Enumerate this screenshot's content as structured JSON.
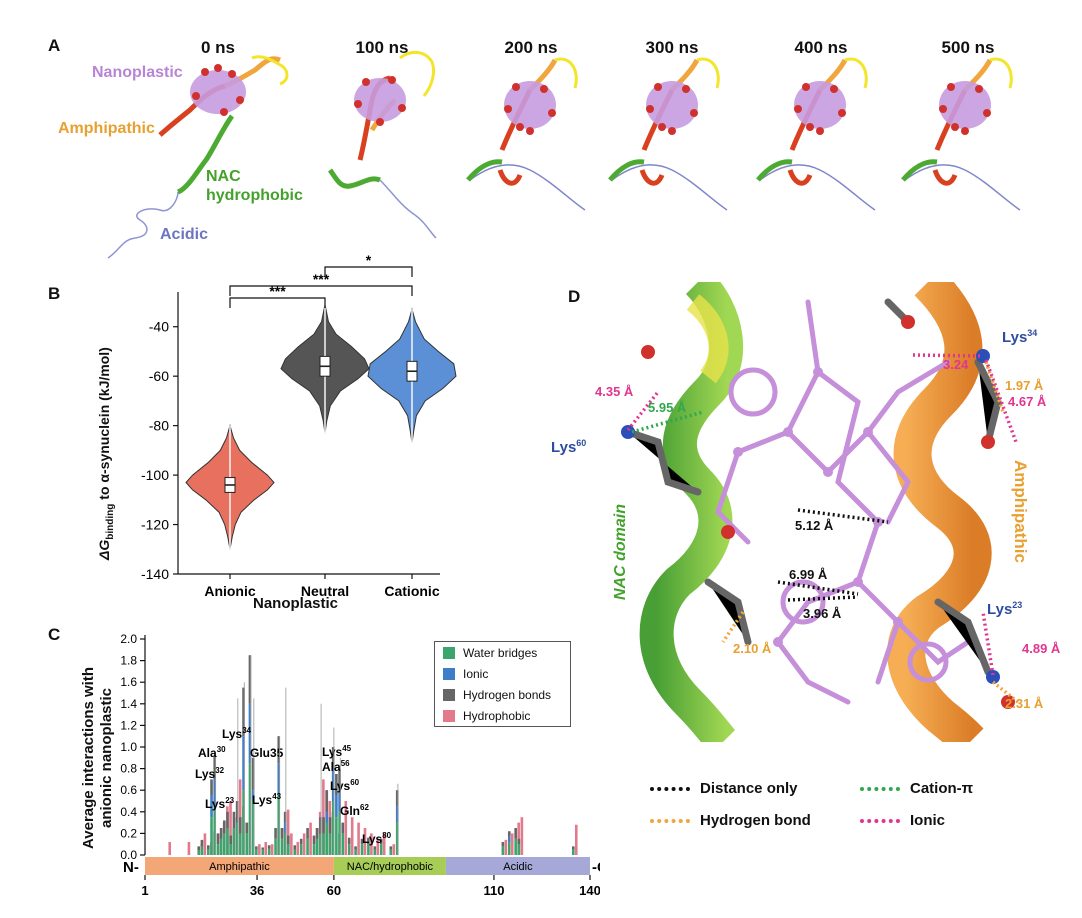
{
  "panel_a": {
    "label": "A",
    "timepoints": [
      "0 ns",
      "100 ns",
      "200 ns",
      "300 ns",
      "400 ns",
      "500 ns"
    ],
    "domains": {
      "nanoplastic": "Nanoplastic",
      "amphipathic": "Amphipathic",
      "nac_line1": "NAC",
      "nac_line2": "hydrophobic",
      "acidic": "Acidic"
    },
    "colors": {
      "nanoplastic": "#c79be0",
      "amphipathic": "#f0a63c",
      "nac": "#4caa32",
      "acidic": "#7f86c9",
      "helix_red": "#d9401f",
      "helix_yellow": "#f2e52a"
    }
  },
  "panel_b": {
    "label": "B",
    "ylabel_main": "ΔG",
    "ylabel_sub": "binding",
    "ylabel_rest": " to α-synuclein (kJ/mol)",
    "xlabel": "Nanoplastic",
    "sig": [
      "***",
      "***",
      "*"
    ]
  },
  "panel_c": {
    "label": "C",
    "ylabel_line1": "Average interactions with",
    "ylabel_line2": "anionic nanoplastic",
    "legend": [
      "Water bridges",
      "Ionic",
      "Hydrogen bonds",
      "Hydrophobic"
    ],
    "legend_colors": [
      "#3aa56d",
      "#3c7ec8",
      "#666666",
      "#e27a8c"
    ],
    "domain_bar": {
      "amphipathic": "Amphipathic",
      "nac": "NAC/hydrophobic",
      "acidic": "Acidic",
      "n": "N-",
      "c": "-C"
    },
    "residue_labels": [
      {
        "name": "Lys",
        "sup": "23"
      },
      {
        "name": "Lys",
        "sup": "32"
      },
      {
        "name": "Ala",
        "sup": "30"
      },
      {
        "name": "Lys",
        "sup": "34"
      },
      {
        "name": "Glu35",
        "sup": ""
      },
      {
        "name": "Lys",
        "sup": "43"
      },
      {
        "name": "Lys",
        "sup": "45"
      },
      {
        "name": "Ala",
        "sup": "56"
      },
      {
        "name": "Lys",
        "sup": "60"
      },
      {
        "name": "Gln",
        "sup": "62"
      },
      {
        "name": "Lys",
        "sup": "80"
      }
    ]
  },
  "panel_d": {
    "label": "D",
    "residues": {
      "lys34": {
        "name": "Lys",
        "sup": "34"
      },
      "lys60": {
        "name": "Lys",
        "sup": "60"
      },
      "lys23": {
        "name": "Lys",
        "sup": "23"
      }
    },
    "domains": {
      "nac": "NAC domain",
      "amph": "Amphipathic"
    },
    "distances": [
      "3.24",
      "1.97 Å",
      "4.67 Å",
      "4.35 Å",
      "5.95 Å",
      "5.12 Å",
      "6.99 Å",
      "3.96 Å",
      "2.10 Å",
      "4.89 Å",
      "2.31 Å"
    ],
    "legend": {
      "distance_only": "Distance only",
      "cation_pi": "Cation-π",
      "hbond": "Hydrogen bond",
      "ionic": "Ionic"
    },
    "legend_colors": {
      "distance_only": "#111111",
      "cation_pi": "#2fa84f",
      "hbond": "#f0a63c",
      "ionic": "#e0368f"
    }
  },
  "chart_data": [
    {
      "type": "violin",
      "categories": [
        "Anionic",
        "Neutral",
        "Cationic"
      ],
      "ylabel": "ΔGbinding to α-synuclein (kJ/mol)",
      "xlabel": "Nanoplastic",
      "ylim": [
        -140,
        -30
      ],
      "yticks": [
        -140,
        -120,
        -100,
        -80,
        -60,
        -40
      ],
      "series": [
        {
          "name": "Anionic",
          "color": "#e8705f",
          "median": -104,
          "q1": -107,
          "q3": -101,
          "min": -130,
          "max": -80,
          "profile": [
            [
              -130,
              0.0
            ],
            [
              -125,
              0.05
            ],
            [
              -120,
              0.12
            ],
            [
              -115,
              0.25
            ],
            [
              -110,
              0.55
            ],
            [
              -106,
              0.85
            ],
            [
              -103,
              1.0
            ],
            [
              -100,
              0.85
            ],
            [
              -95,
              0.5
            ],
            [
              -90,
              0.22
            ],
            [
              -85,
              0.08
            ],
            [
              -80,
              0.0
            ]
          ]
        },
        {
          "name": "Neutral",
          "color": "#555555",
          "median": -56,
          "q1": -60,
          "q3": -52,
          "min": -83,
          "max": -31,
          "profile": [
            [
              -83,
              0.0
            ],
            [
              -78,
              0.04
            ],
            [
              -72,
              0.12
            ],
            [
              -66,
              0.35
            ],
            [
              -61,
              0.75
            ],
            [
              -57,
              1.0
            ],
            [
              -53,
              0.9
            ],
            [
              -48,
              0.6
            ],
            [
              -43,
              0.25
            ],
            [
              -38,
              0.08
            ],
            [
              -31,
              0.0
            ]
          ]
        },
        {
          "name": "Cationic",
          "color": "#5b8fd6",
          "median": -58,
          "q1": -62,
          "q3": -54,
          "min": -87,
          "max": -33,
          "profile": [
            [
              -87,
              0.0
            ],
            [
              -82,
              0.04
            ],
            [
              -76,
              0.1
            ],
            [
              -70,
              0.3
            ],
            [
              -65,
              0.7
            ],
            [
              -60,
              1.0
            ],
            [
              -55,
              0.95
            ],
            [
              -50,
              0.6
            ],
            [
              -45,
              0.28
            ],
            [
              -38,
              0.08
            ],
            [
              -33,
              0.0
            ]
          ]
        }
      ],
      "significance": [
        {
          "pair": [
            "Anionic",
            "Neutral"
          ],
          "label": "***"
        },
        {
          "pair": [
            "Anionic",
            "Cationic"
          ],
          "label": "***"
        },
        {
          "pair": [
            "Neutral",
            "Cationic"
          ],
          "label": "*"
        }
      ]
    },
    {
      "type": "bar",
      "xlabel": "",
      "ylabel": "Average interactions with anionic nanoplastic",
      "ylim": [
        0,
        2.0
      ],
      "yticks": [
        0.0,
        0.2,
        0.4,
        0.6,
        0.8,
        1.0,
        1.2,
        1.4,
        1.6,
        1.8,
        2.0
      ],
      "xlim": [
        1,
        140
      ],
      "xticks": [
        1,
        36,
        60,
        110,
        140
      ],
      "series_names": [
        "Water bridges",
        "Ionic",
        "Hydrogen bonds",
        "Hydrophobic"
      ],
      "bars": [
        {
          "x": 8,
          "v": [
            0,
            0,
            0,
            0.12
          ]
        },
        {
          "x": 14,
          "v": [
            0,
            0,
            0,
            0.12
          ]
        },
        {
          "x": 18,
          "v": [
            0.04,
            0,
            0.04,
            0.1
          ]
        },
        {
          "x": 19,
          "v": [
            0.08,
            0,
            0.06,
            0.2
          ]
        },
        {
          "x": 21,
          "v": [
            0.05,
            0,
            0.04,
            0.12
          ]
        },
        {
          "x": 22,
          "v": [
            0.35,
            0.2,
            0.15,
            0.22
          ]
        },
        {
          "x": 23,
          "v": [
            0.44,
            0.26,
            0.22,
            0
          ]
        },
        {
          "x": 24,
          "v": [
            0.1,
            0,
            0.1,
            0.2
          ]
        },
        {
          "x": 25,
          "v": [
            0.15,
            0,
            0.1,
            0.3
          ]
        },
        {
          "x": 26,
          "v": [
            0.2,
            0,
            0.12,
            0.45
          ]
        },
        {
          "x": 27,
          "v": [
            0.25,
            0,
            0.15,
            0.5
          ]
        },
        {
          "x": 28,
          "v": [
            0.1,
            0,
            0.08,
            0.25
          ]
        },
        {
          "x": 29,
          "v": [
            0.25,
            0,
            0.15,
            0.35
          ]
        },
        {
          "x": 30,
          "v": [
            0.3,
            0,
            0.2,
            0.7
          ]
        },
        {
          "x": 31,
          "v": [
            0.2,
            0,
            0.15,
            0.45
          ]
        },
        {
          "x": 32,
          "v": [
            0.6,
            0.5,
            0.45,
            0
          ]
        },
        {
          "x": 33,
          "v": [
            0.2,
            0,
            0.1,
            0.3
          ]
        },
        {
          "x": 34,
          "v": [
            0.85,
            0.55,
            0.45,
            0
          ]
        },
        {
          "x": 35,
          "v": [
            0.5,
            0.1,
            0.3,
            0
          ]
        },
        {
          "x": 36,
          "v": [
            0.05,
            0,
            0.03,
            0.1
          ]
        },
        {
          "x": 38,
          "v": [
            0.05,
            0,
            0.02,
            0.12
          ]
        },
        {
          "x": 40,
          "v": [
            0.06,
            0,
            0.03,
            0.1
          ]
        },
        {
          "x": 42,
          "v": [
            0.15,
            0,
            0.1,
            0.25
          ]
        },
        {
          "x": 43,
          "v": [
            0.55,
            0.3,
            0.25,
            0
          ]
        },
        {
          "x": 44,
          "v": [
            0.15,
            0,
            0.1,
            0.25
          ]
        },
        {
          "x": 45,
          "v": [
            0.2,
            0.1,
            0.1,
            0.42
          ]
        },
        {
          "x": 46,
          "v": [
            0.1,
            0,
            0.08,
            0.2
          ]
        },
        {
          "x": 48,
          "v": [
            0.05,
            0,
            0.04,
            0.12
          ]
        },
        {
          "x": 50,
          "v": [
            0.1,
            0,
            0.05,
            0.2
          ]
        },
        {
          "x": 52,
          "v": [
            0.15,
            0,
            0.1,
            0.3
          ]
        },
        {
          "x": 54,
          "v": [
            0.1,
            0,
            0.08,
            0.25
          ]
        },
        {
          "x": 55,
          "v": [
            0.15,
            0,
            0.1,
            0.4
          ]
        },
        {
          "x": 56,
          "v": [
            0.2,
            0,
            0.15,
            0.7
          ]
        },
        {
          "x": 57,
          "v": [
            0.2,
            0,
            0.15,
            0.6
          ]
        },
        {
          "x": 58,
          "v": [
            0.3,
            0.1,
            0.2,
            0.5
          ]
        },
        {
          "x": 59,
          "v": [
            0.2,
            0,
            0.15,
            0.4
          ]
        },
        {
          "x": 60,
          "v": [
            0.5,
            0.3,
            0.2,
            0
          ]
        },
        {
          "x": 61,
          "v": [
            0.35,
            0.2,
            0.2,
            0.2
          ]
        },
        {
          "x": 62,
          "v": [
            0.4,
            0.2,
            0.2,
            0
          ]
        },
        {
          "x": 63,
          "v": [
            0.2,
            0,
            0.1,
            0.5
          ]
        },
        {
          "x": 65,
          "v": [
            0.1,
            0,
            0.06,
            0.35
          ]
        },
        {
          "x": 67,
          "v": [
            0.05,
            0,
            0.03,
            0.3
          ]
        },
        {
          "x": 69,
          "v": [
            0.1,
            0,
            0.05,
            0.25
          ]
        },
        {
          "x": 71,
          "v": [
            0.1,
            0,
            0.06,
            0.2
          ]
        },
        {
          "x": 73,
          "v": [
            0.05,
            0,
            0.03,
            0.15
          ]
        },
        {
          "x": 75,
          "v": [
            0.1,
            0,
            0.05,
            0.2
          ]
        },
        {
          "x": 78,
          "v": [
            0.05,
            0,
            0.03,
            0.1
          ]
        },
        {
          "x": 80,
          "v": [
            0.3,
            0.15,
            0.15,
            0
          ]
        },
        {
          "x": 113,
          "v": [
            0.08,
            0,
            0.04,
            0.14
          ]
        },
        {
          "x": 115,
          "v": [
            0.12,
            0.05,
            0.05,
            0.2
          ]
        },
        {
          "x": 117,
          "v": [
            0.15,
            0,
            0.1,
            0.3
          ]
        },
        {
          "x": 118,
          "v": [
            0.1,
            0,
            0.05,
            0.35
          ]
        },
        {
          "x": 135,
          "v": [
            0.05,
            0,
            0.03,
            0.28
          ]
        }
      ],
      "annotations": [
        {
          "x": 23,
          "y": 0.92,
          "label": "Lys23"
        },
        {
          "x": 32,
          "y": 1.6,
          "label": "Lys32"
        },
        {
          "x": 30,
          "y": 1.45,
          "label": "Ala30"
        },
        {
          "x": 34,
          "y": 1.85,
          "label": "Lys34"
        },
        {
          "x": 35,
          "y": 1.45,
          "label": "Glu35"
        },
        {
          "x": 43,
          "y": 1.1,
          "label": "Lys43"
        },
        {
          "x": 45,
          "y": 1.55,
          "label": "Lys45"
        },
        {
          "x": 56,
          "y": 1.4,
          "label": "Ala56"
        },
        {
          "x": 60,
          "y": 1.18,
          "label": "Lys60"
        },
        {
          "x": 62,
          "y": 0.9,
          "label": "Gln62"
        },
        {
          "x": 80,
          "y": 0.66,
          "label": "Lys80"
        }
      ]
    }
  ]
}
